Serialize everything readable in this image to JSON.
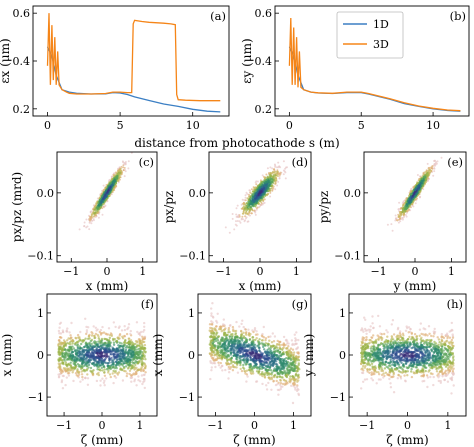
{
  "figure": {
    "shared_xlabel_top": "distance from photocathode s (m)",
    "legend": [
      {
        "label": "1D",
        "color": "#3b7fc4"
      },
      {
        "label": "3D",
        "color": "#f58518"
      }
    ]
  },
  "chart_data": [
    {
      "id": "a",
      "type": "line",
      "tag": "(a)",
      "ylabel": "εx (μm)",
      "xlim": [
        -1,
        12.5
      ],
      "ylim": [
        0.17,
        0.63
      ],
      "xticks": [
        0,
        5,
        10
      ],
      "yticks": [
        0.2,
        0.4,
        0.6
      ],
      "series": [
        {
          "name": "1D",
          "color": "#3b7fc4",
          "x": [
            0.0,
            0.3,
            0.6,
            1.0,
            1.5,
            2.0,
            3.0,
            4.0,
            4.5,
            5.0,
            5.5,
            6.0,
            7.0,
            8.0,
            9.0,
            10.0,
            11.0,
            11.9
          ],
          "y": [
            0.46,
            0.42,
            0.34,
            0.28,
            0.27,
            0.265,
            0.262,
            0.263,
            0.268,
            0.266,
            0.26,
            0.25,
            0.235,
            0.22,
            0.21,
            0.198,
            0.19,
            0.187
          ]
        },
        {
          "name": "3D",
          "color": "#f58518",
          "x": [
            0.0,
            0.1,
            0.2,
            0.3,
            0.4,
            0.5,
            0.6,
            0.7,
            0.8,
            1.0,
            1.3,
            1.5,
            2.0,
            3.0,
            4.0,
            4.5,
            5.0,
            5.5,
            5.8,
            5.9,
            6.0,
            6.5,
            7.0,
            8.0,
            8.5,
            8.8,
            8.9,
            9.0,
            9.5,
            10.5,
            11.0,
            11.9
          ],
          "y": [
            0.38,
            0.6,
            0.3,
            0.55,
            0.32,
            0.5,
            0.3,
            0.44,
            0.3,
            0.28,
            0.27,
            0.265,
            0.262,
            0.262,
            0.264,
            0.27,
            0.27,
            0.268,
            0.268,
            0.555,
            0.57,
            0.565,
            0.562,
            0.558,
            0.555,
            0.552,
            0.26,
            0.238,
            0.236,
            0.234,
            0.234,
            0.234
          ]
        }
      ]
    },
    {
      "id": "b",
      "type": "line",
      "tag": "(b)",
      "ylabel": "εy (μm)",
      "xlim": [
        -1,
        12.5
      ],
      "ylim": [
        0.17,
        0.63
      ],
      "xticks": [
        0,
        5,
        10
      ],
      "yticks": [
        0.2,
        0.4,
        0.6
      ],
      "series": [
        {
          "name": "1D",
          "color": "#3b7fc4",
          "x": [
            0.0,
            0.3,
            0.6,
            1.0,
            1.5,
            2.0,
            3.0,
            4.0,
            5.0,
            5.5,
            6.0,
            7.0,
            8.0,
            9.0,
            10.0,
            11.0,
            11.9
          ],
          "y": [
            0.46,
            0.42,
            0.34,
            0.28,
            0.27,
            0.266,
            0.264,
            0.268,
            0.268,
            0.262,
            0.255,
            0.24,
            0.222,
            0.21,
            0.2,
            0.193,
            0.19
          ]
        },
        {
          "name": "3D",
          "color": "#f58518",
          "x": [
            0.0,
            0.1,
            0.2,
            0.3,
            0.4,
            0.5,
            0.6,
            0.7,
            0.8,
            1.0,
            1.5,
            2.0,
            3.0,
            4.0,
            5.0,
            5.5,
            6.0,
            7.0,
            8.0,
            9.0,
            10.0,
            11.0,
            11.9
          ],
          "y": [
            0.38,
            0.58,
            0.3,
            0.54,
            0.3,
            0.5,
            0.29,
            0.44,
            0.29,
            0.28,
            0.27,
            0.267,
            0.265,
            0.27,
            0.27,
            0.264,
            0.257,
            0.242,
            0.225,
            0.212,
            0.202,
            0.195,
            0.192
          ]
        }
      ]
    },
    {
      "id": "c",
      "type": "scatter",
      "tag": "(c)",
      "xlabel": "x (mm)",
      "ylabel": "px/pz (mrd)",
      "xlim": [
        -1.4,
        1.4
      ],
      "ylim": [
        -0.11,
        0.065
      ],
      "xticks": [
        -1,
        0,
        1
      ],
      "yticks": [
        0.0,
        -0.1
      ],
      "yticklabels": [
        "0.0",
        "−0.1"
      ],
      "show_yticklabels": true,
      "cloud": {
        "center": [
          0.0,
          0.0
        ],
        "corr_slope": 0.085,
        "sx": 0.22,
        "sy": 0.006
      }
    },
    {
      "id": "d",
      "type": "scatter",
      "tag": "(d)",
      "xlabel": "x (mm)",
      "ylabel": "px/pz",
      "xlim": [
        -1.4,
        1.4
      ],
      "ylim": [
        -0.11,
        0.065
      ],
      "xticks": [
        -1,
        0,
        1
      ],
      "yticks": [
        0.0,
        -0.1
      ],
      "yticklabels": [
        "0.0",
        "−0.1"
      ],
      "show_yticklabels": true,
      "cloud": {
        "center": [
          0.0,
          0.0
        ],
        "corr_slope": 0.06,
        "sx": 0.25,
        "sy": 0.009
      }
    },
    {
      "id": "e",
      "type": "scatter",
      "tag": "(e)",
      "xlabel": "y (mm)",
      "ylabel": "py/pz",
      "xlim": [
        -1.4,
        1.4
      ],
      "ylim": [
        -0.11,
        0.065
      ],
      "xticks": [
        -1,
        0,
        1
      ],
      "yticks": [
        0.0,
        -0.1
      ],
      "yticklabels": [
        "0.0",
        "−0.1"
      ],
      "show_yticklabels": true,
      "cloud": {
        "center": [
          0.0,
          0.0
        ],
        "corr_slope": 0.085,
        "sx": 0.22,
        "sy": 0.006
      }
    },
    {
      "id": "f",
      "type": "scatter",
      "tag": "(f)",
      "xlabel": "ζ (mm)",
      "ylabel": "x (mm)",
      "xlim": [
        -1.45,
        1.45
      ],
      "ylim": [
        -1.45,
        1.45
      ],
      "xticks": [
        -1,
        0,
        1
      ],
      "yticks": [
        -1,
        0,
        1
      ],
      "cloud": {
        "shape": "flat",
        "tilt": 0.0,
        "halfwidth": 1.15,
        "halfheight": 0.62
      }
    },
    {
      "id": "g",
      "type": "scatter",
      "tag": "(g)",
      "xlabel": "ζ (mm)",
      "ylabel": "x (mm)",
      "xlim": [
        -1.45,
        1.45
      ],
      "ylim": [
        -1.45,
        1.45
      ],
      "xticks": [
        -1,
        0,
        1
      ],
      "yticks": [
        -1,
        0,
        1
      ],
      "cloud": {
        "shape": "flat",
        "tilt": -0.28,
        "halfwidth": 1.15,
        "halfheight": 0.62
      }
    },
    {
      "id": "h",
      "type": "scatter",
      "tag": "(h)",
      "xlabel": "ζ (mm)",
      "ylabel": "y (mm)",
      "xlim": [
        -1.45,
        1.45
      ],
      "ylim": [
        -1.45,
        1.45
      ],
      "xticks": [
        -1,
        0,
        1
      ],
      "yticks": [
        -1,
        0,
        1
      ],
      "cloud": {
        "shape": "flat",
        "tilt": 0.0,
        "halfwidth": 1.15,
        "halfheight": 0.62
      }
    }
  ]
}
